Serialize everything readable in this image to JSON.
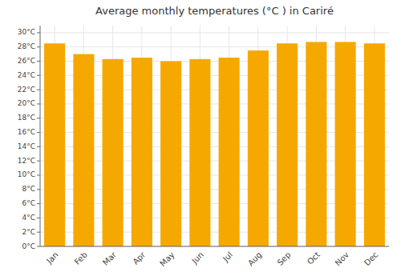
{
  "chart_data": {
    "type": "bar",
    "title": "Average monthly temperatures (°C ) in Cariré",
    "categories": [
      "Jan",
      "Feb",
      "Mar",
      "Apr",
      "May",
      "Jun",
      "Jul",
      "Aug",
      "Sep",
      "Oct",
      "Nov",
      "Dec"
    ],
    "values": [
      28.5,
      27.0,
      26.3,
      26.5,
      26.0,
      26.3,
      26.5,
      27.5,
      28.5,
      28.7,
      28.7,
      28.5
    ],
    "color": "#F5A800",
    "ylim": [
      0,
      31
    ],
    "yticks": [
      {
        "value": 0,
        "label": "0°C"
      },
      {
        "value": 2,
        "label": "2°C"
      },
      {
        "value": 4,
        "label": "4°C"
      },
      {
        "value": 6,
        "label": "6°C"
      },
      {
        "value": 8,
        "label": "8°C"
      },
      {
        "value": 10,
        "label": "10°C"
      },
      {
        "value": 12,
        "label": "12°C"
      },
      {
        "value": 14,
        "label": "14°C"
      },
      {
        "value": 16,
        "label": "16°C"
      },
      {
        "value": 18,
        "label": "18°C"
      },
      {
        "value": 20,
        "label": "20°C"
      },
      {
        "value": 22,
        "label": "22°C"
      },
      {
        "value": 24,
        "label": "24°C"
      },
      {
        "value": 26,
        "label": "26°C"
      },
      {
        "value": 28,
        "label": "28°C"
      },
      {
        "value": 30,
        "label": "30°C"
      }
    ],
    "grid": true
  }
}
